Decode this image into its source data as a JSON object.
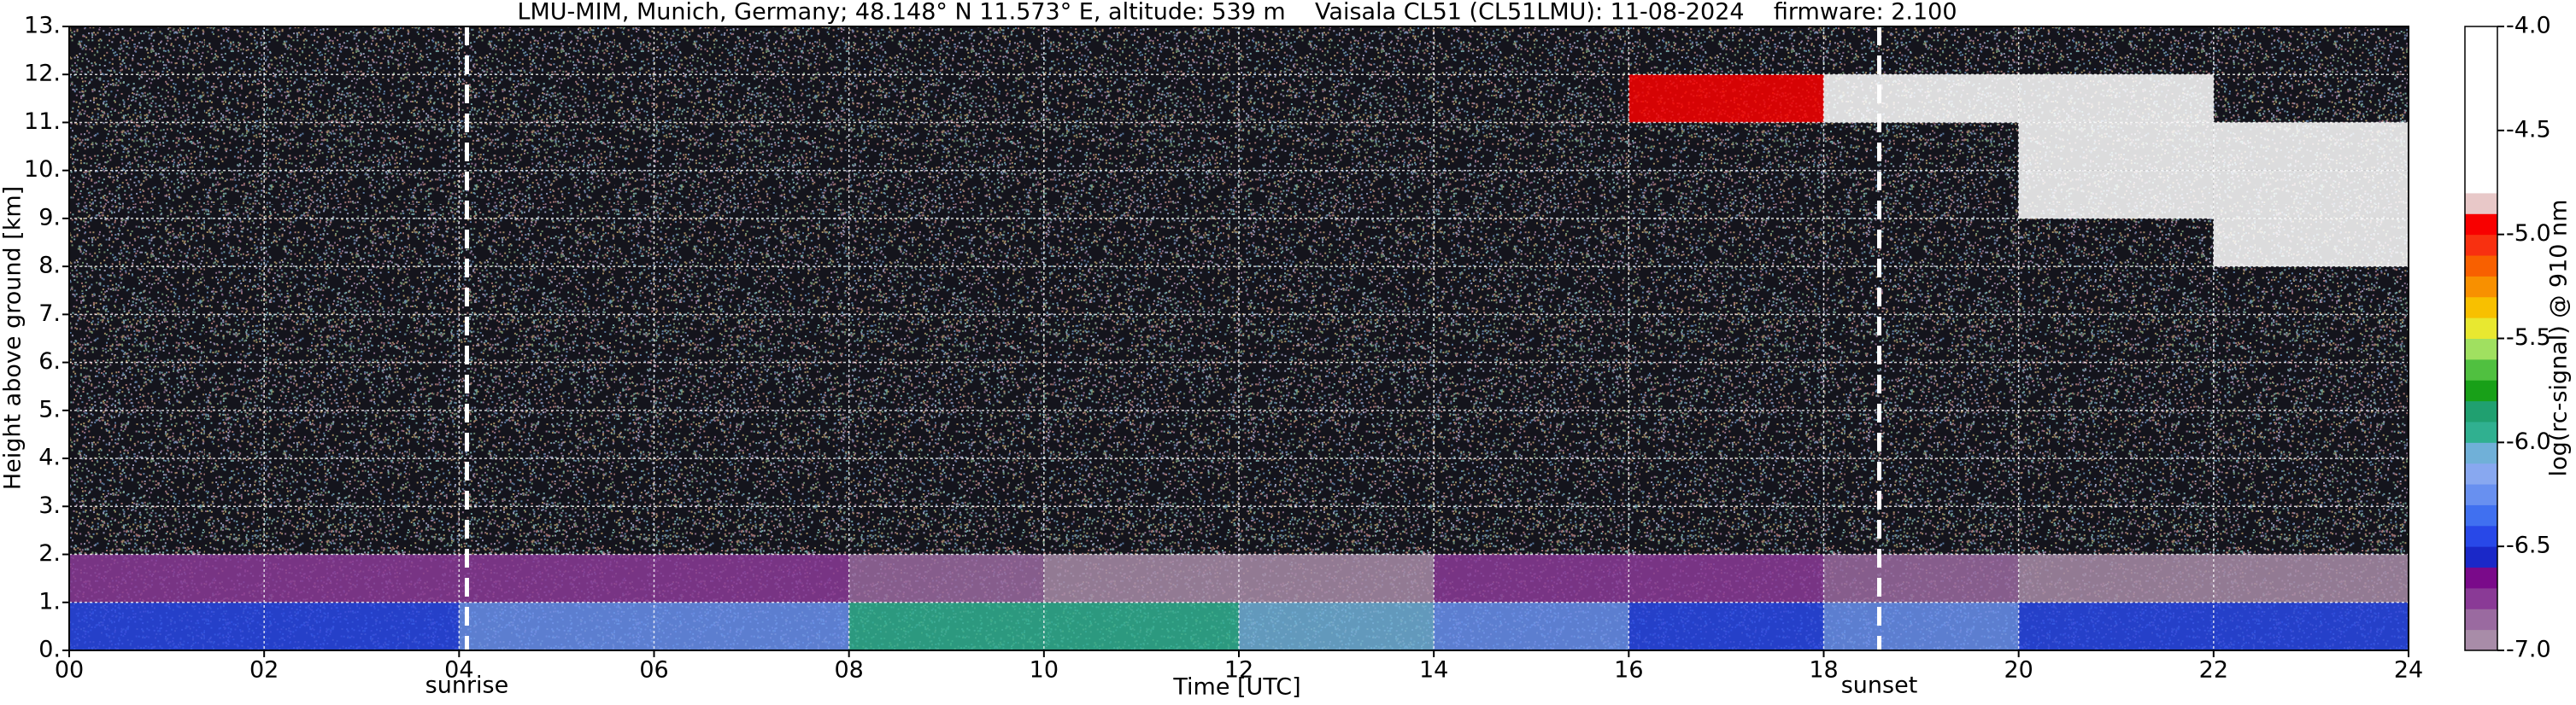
{
  "chart_data": {
    "type": "heatmap",
    "title": "LMU-MIM, Munich, Germany; 48.148° N 11.573° E, altitude: 539 m    Vaisala CL51 (CL51LMU): 11-08-2024    firmware: 2.100",
    "x_label": "Time [UTC]",
    "y_label": "Height above ground [km]",
    "colorbar_label": "log(rc-signal) @ 910 nm",
    "x_bins": [
      0,
      2,
      4,
      6,
      8,
      10,
      12,
      14,
      16,
      18,
      20,
      22,
      24
    ],
    "y_bins": [
      0,
      1,
      2,
      3,
      4,
      5,
      6,
      7,
      8,
      9,
      10,
      11,
      12,
      13
    ],
    "z": [
      [
        -6.4,
        -6.4,
        -6.3,
        -6.2,
        -6.0,
        -5.9,
        -6.1,
        -6.3,
        -6.4,
        -6.3,
        -6.4,
        -6.4
      ],
      [
        -6.7,
        -6.7,
        -6.75,
        -6.8,
        -6.85,
        -6.9,
        -6.9,
        -6.75,
        -6.8,
        -6.85,
        -6.9,
        -6.9
      ],
      [
        null,
        null,
        null,
        null,
        null,
        null,
        null,
        null,
        null,
        null,
        null,
        null
      ],
      [
        null,
        null,
        null,
        null,
        null,
        null,
        null,
        null,
        null,
        null,
        null,
        null
      ],
      [
        null,
        null,
        null,
        null,
        null,
        null,
        null,
        null,
        null,
        null,
        null,
        null
      ],
      [
        null,
        null,
        null,
        null,
        null,
        null,
        null,
        null,
        null,
        null,
        null,
        null
      ],
      [
        null,
        null,
        null,
        null,
        null,
        null,
        null,
        null,
        null,
        null,
        null,
        null
      ],
      [
        null,
        null,
        null,
        null,
        null,
        null,
        null,
        null,
        null,
        null,
        null,
        null
      ],
      [
        null,
        null,
        null,
        null,
        null,
        null,
        null,
        null,
        null,
        null,
        null,
        -4.6
      ],
      [
        null,
        null,
        null,
        null,
        null,
        null,
        null,
        null,
        null,
        null,
        -4.8,
        -4.3
      ],
      [
        null,
        null,
        null,
        null,
        null,
        null,
        null,
        null,
        null,
        null,
        -4.3,
        -4.6
      ],
      [
        null,
        null,
        null,
        null,
        null,
        null,
        null,
        null,
        -4.9,
        -4.4,
        -4.5,
        null
      ],
      [
        null,
        null,
        null,
        null,
        null,
        null,
        null,
        null,
        null,
        null,
        null,
        null
      ]
    ],
    "xlim": [
      0,
      24
    ],
    "ylim": [
      0,
      13
    ],
    "clim": [
      -7,
      -4
    ],
    "xticks": [
      {
        "value": 0,
        "label": "00"
      },
      {
        "value": 2,
        "label": "02"
      },
      {
        "value": 4,
        "label": "04"
      },
      {
        "value": 6,
        "label": "06"
      },
      {
        "value": 8,
        "label": "08"
      },
      10,
      12,
      14,
      16,
      18,
      20,
      22,
      24
    ],
    "yticks": [
      {
        "value": 0,
        "label": "0."
      },
      {
        "value": 1,
        "label": "1."
      },
      {
        "value": 2,
        "label": "2."
      },
      {
        "value": 3,
        "label": "3."
      },
      {
        "value": 4,
        "label": "4."
      },
      {
        "value": 5,
        "label": "5."
      },
      {
        "value": 6,
        "label": "6."
      },
      {
        "value": 7,
        "label": "7."
      },
      {
        "value": 8,
        "label": "8."
      },
      {
        "value": 9,
        "label": "9."
      },
      {
        "value": 10,
        "label": "10."
      },
      {
        "value": 11,
        "label": "11."
      },
      {
        "value": 12,
        "label": "12."
      },
      {
        "value": 13,
        "label": "13."
      }
    ],
    "cticks": [
      {
        "value": -4,
        "label": "-4.0"
      },
      {
        "value": -4.5,
        "label": "-4.5"
      },
      {
        "value": -5,
        "label": "-5.0"
      },
      {
        "value": -5.5,
        "label": "-5.5"
      },
      {
        "value": -6,
        "label": "-6.0"
      },
      {
        "value": -6.5,
        "label": "-6.5"
      },
      {
        "value": -7,
        "label": "-7.0"
      }
    ],
    "colors": [
      "#a88ca8",
      "#9a6aa0",
      "#8a3a96",
      "#7a0a8a",
      "#1a28c8",
      "#2848e8",
      "#4070f0",
      "#6890f0",
      "#88a8f0",
      "#70b0d8",
      "#30b090",
      "#20a070",
      "#18a018",
      "#50c040",
      "#a0e060",
      "#e8e830",
      "#f8c000",
      "#f89000",
      "#f86000",
      "#f83010",
      "#f80000",
      "#e8c8c8",
      "#ffffff",
      "#ffffff",
      "#ffffff",
      "#ffffff",
      "#ffffff",
      "#ffffff",
      "#ffffff",
      "#ffffff"
    ],
    "grid": true,
    "annotations": [
      {
        "x": 4.08,
        "label": "sunrise"
      },
      {
        "x": 18.57,
        "label": "sunset"
      }
    ]
  }
}
